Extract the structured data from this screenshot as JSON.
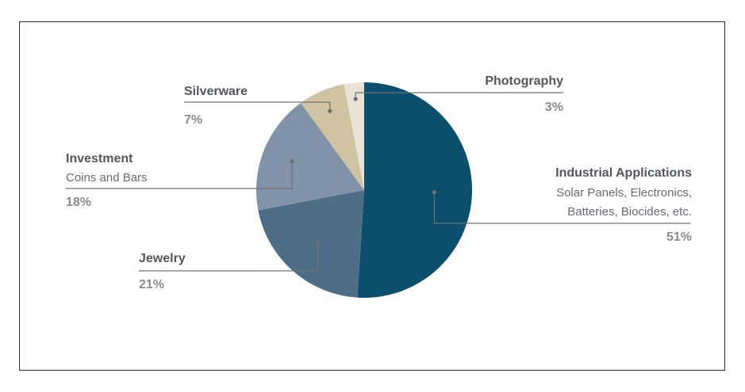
{
  "chart_data": {
    "type": "pie",
    "title": "",
    "start": "12 o'clock, clockwise",
    "slices": [
      {
        "name": "Industrial Applications",
        "sub": [
          "Solar Panels, Electronics,",
          "Batteries, Biocides, etc."
        ],
        "value": 51,
        "label": "51%",
        "color": "#0b4f6c"
      },
      {
        "name": "Jewelry",
        "sub": [],
        "value": 21,
        "label": "21%",
        "color": "#4e6d87"
      },
      {
        "name": "Investment",
        "sub": [
          "Coins and Bars"
        ],
        "value": 18,
        "label": "18%",
        "color": "#8293a9"
      },
      {
        "name": "Silverware",
        "sub": [],
        "value": 7,
        "label": "7%",
        "color": "#cfc3a2"
      },
      {
        "name": "Photography",
        "sub": [],
        "value": 3,
        "label": "3%",
        "color": "#e9e3d6"
      }
    ]
  }
}
